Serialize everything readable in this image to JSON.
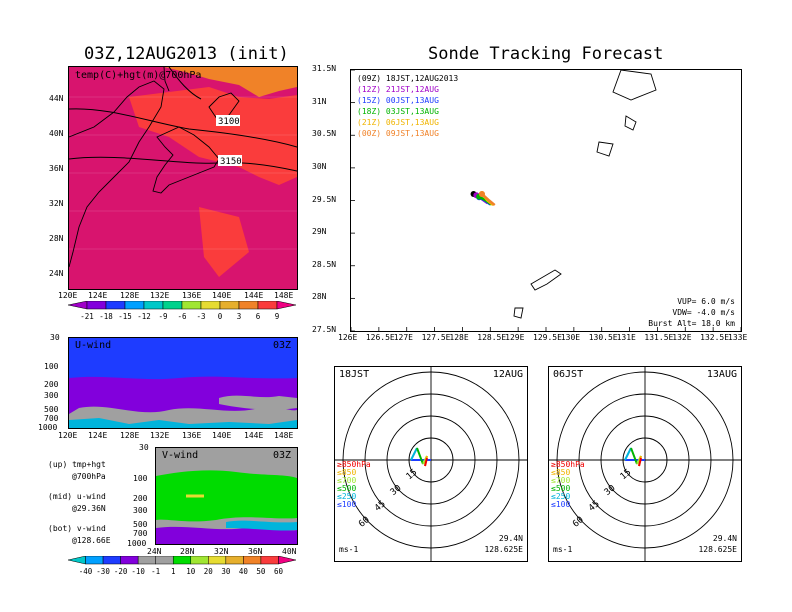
{
  "chart_data": [
    {
      "type": "heatmap",
      "title": "03Z,12AUG2013 (init)",
      "subtitle": "temp(C)+hgt(m)@700hPa",
      "xticks": [
        "120E",
        "124E",
        "128E",
        "132E",
        "136E",
        "140E",
        "144E",
        "148E"
      ],
      "yticks": [
        "44N",
        "40N",
        "36N",
        "32N",
        "28N",
        "24N"
      ],
      "contour_labels": [
        "3100",
        "3150"
      ],
      "colorbar": [
        "-21",
        "-18",
        "-15",
        "-12",
        "-9",
        "-6",
        "-3",
        "0",
        "3",
        "6",
        "9"
      ],
      "colorbar_colors": [
        "#a000c8",
        "#8200dc",
        "#1e3cff",
        "#00a0ff",
        "#00c8c8",
        "#00d28c",
        "#a0e632",
        "#e6dc32",
        "#e6af2d",
        "#f08228",
        "#fa3c3c",
        "#f00082"
      ]
    },
    {
      "type": "heatmap",
      "name": "U-wind",
      "time": "03Z",
      "xticks": [
        "120E",
        "124E",
        "128E",
        "132E",
        "136E",
        "140E",
        "144E",
        "148E"
      ],
      "yticks": [
        "30",
        "100",
        "200",
        "300",
        "500",
        "700",
        "1000"
      ]
    },
    {
      "type": "heatmap",
      "name": "V-wind",
      "time": "03Z",
      "xticks": [
        "24N",
        "28N",
        "32N",
        "36N",
        "40N"
      ],
      "yticks": [
        "30",
        "100",
        "200",
        "300",
        "500",
        "700",
        "1000"
      ],
      "colorbar": [
        "-40",
        "-30",
        "-20",
        "-10",
        "-1",
        "1",
        "10",
        "20",
        "30",
        "40",
        "50",
        "60"
      ],
      "colorbar_colors": [
        "#00c8c8",
        "#00a0ff",
        "#1e3cff",
        "#8200dc",
        "#a0a0a0",
        "#a0a0a0",
        "#00dc00",
        "#a0e632",
        "#e6dc32",
        "#e6af2d",
        "#f08228",
        "#fa3c3c",
        "#f00082"
      ]
    },
    {
      "type": "line",
      "title": "Sonde Tracking Forecast",
      "xticks": [
        "126E",
        "126.5E",
        "127E",
        "127.5E",
        "128E",
        "128.5E",
        "129E",
        "129.5E",
        "130E",
        "130.5E",
        "131E",
        "131.5E",
        "132E",
        "132.5E",
        "133E"
      ],
      "yticks": [
        "31.5N",
        "31N",
        "30.5N",
        "30N",
        "29.5N",
        "29N",
        "28.5N",
        "28N",
        "27.5N"
      ],
      "xlim": [
        126,
        133
      ],
      "ylim": [
        27.5,
        31.5
      ],
      "series": [
        {
          "name": "(09Z) 18JST,12AUG2013",
          "color": "#000000",
          "x": [
            128.2,
            128.3,
            128.4,
            128.5
          ],
          "y": [
            29.6,
            29.55,
            29.5,
            29.45
          ]
        },
        {
          "name": "(12Z) 21JST,12AUG",
          "color": "#a000c8",
          "x": [
            128.25,
            128.35,
            128.45
          ],
          "y": [
            29.58,
            29.52,
            29.46
          ]
        },
        {
          "name": "(15Z) 00JST,13AUG",
          "color": "#1e3cff",
          "x": [
            128.3,
            128.4,
            128.5
          ],
          "y": [
            29.55,
            29.5,
            29.44
          ]
        },
        {
          "name": "(18Z) 03JST,13AUG",
          "color": "#00b400",
          "x": [
            128.3,
            128.42,
            128.52
          ],
          "y": [
            29.56,
            29.5,
            29.44
          ]
        },
        {
          "name": "(21Z) 06JST,13AUG",
          "color": "#f0b400",
          "x": [
            128.35,
            128.45,
            128.55
          ],
          "y": [
            29.6,
            29.5,
            29.43
          ]
        },
        {
          "name": "(00Z) 09JST,13AUG",
          "color": "#f08228",
          "x": [
            128.35,
            128.48,
            128.58
          ],
          "y": [
            29.6,
            29.5,
            29.43
          ]
        }
      ],
      "annotations": [
        "VUP= 6.0 m/s",
        "VDW= -4.0 m/s",
        "Burst Alt= 18.0 km"
      ]
    },
    {
      "type": "scatter",
      "name": "hodograph-1",
      "left_label": "18JST",
      "right_label": "12AUG",
      "ring_labels": [
        "15",
        "30",
        "45",
        "60"
      ],
      "legend": [
        {
          "label": "≥850hPa",
          "color": "#f00000"
        },
        {
          "label": "≤850",
          "color": "#f0b400"
        },
        {
          "label": "≤700",
          "color": "#a0e632"
        },
        {
          "label": "≤500",
          "color": "#00b400"
        },
        {
          "label": "≤250",
          "color": "#00b4dc"
        },
        {
          "label": "≤100",
          "color": "#1e3cff"
        }
      ],
      "lat": "29.4N",
      "lon": "128.625E",
      "unit": "ms-1"
    },
    {
      "type": "scatter",
      "name": "hodograph-2",
      "left_label": "06JST",
      "right_label": "13AUG",
      "ring_labels": [
        "15",
        "30",
        "45",
        "60"
      ],
      "legend": [
        {
          "label": "≥850hPa",
          "color": "#f00000"
        },
        {
          "label": "≤850",
          "color": "#f0b400"
        },
        {
          "label": "≤700",
          "color": "#a0e632"
        },
        {
          "label": "≤500",
          "color": "#00b400"
        },
        {
          "label": "≤250",
          "color": "#00b4dc"
        },
        {
          "label": "≤100",
          "color": "#1e3cff"
        }
      ],
      "lat": "29.4N",
      "lon": "128.625E",
      "unit": "ms-1"
    }
  ],
  "side_notes": [
    {
      "line1": "(up) tmp+hgt",
      "line2": "@700hPa"
    },
    {
      "line1": "(mid) u-wind",
      "line2": "@29.36N"
    },
    {
      "line1": "(bot) v-wind",
      "line2": "@128.66E"
    }
  ]
}
